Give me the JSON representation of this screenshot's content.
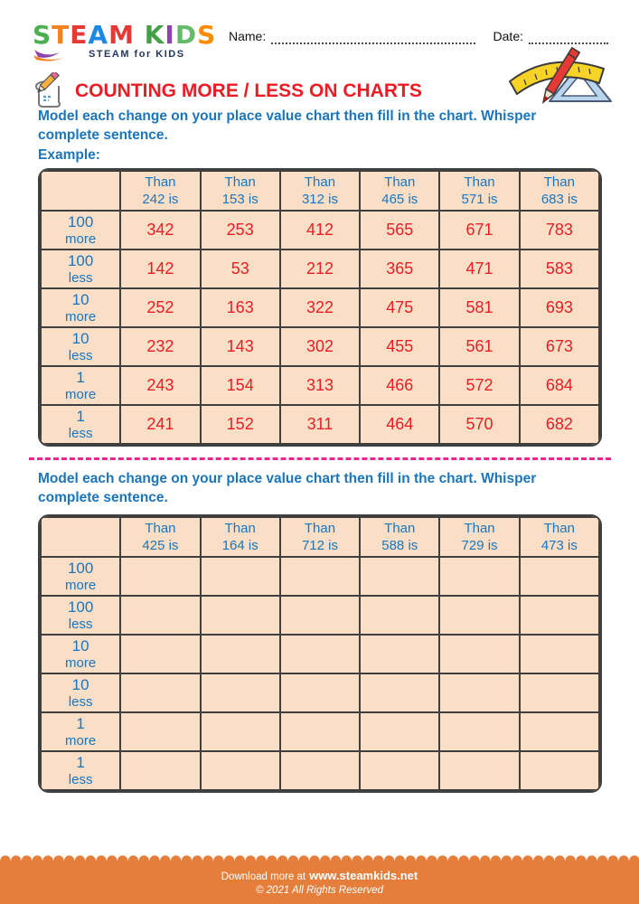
{
  "header": {
    "logo": {
      "letters": [
        {
          "ch": "S",
          "color": "#4caf50"
        },
        {
          "ch": "T",
          "color": "#f58220"
        },
        {
          "ch": "E",
          "color": "#e53935"
        },
        {
          "ch": "A",
          "color": "#1e88e5"
        },
        {
          "ch": "M",
          "color": "#e53935"
        },
        {
          "ch": " ",
          "color": "#000000"
        },
        {
          "ch": "K",
          "color": "#43a047"
        },
        {
          "ch": "I",
          "color": "#8e44ad"
        },
        {
          "ch": "D",
          "color": "#66bb6a"
        },
        {
          "ch": "S",
          "color": "#fb8c00"
        }
      ],
      "tagline": "STEAM for KIDS"
    },
    "name_label": "Name:",
    "date_label": "Date:"
  },
  "title": "COUNTING MORE / LESS ON CHARTS",
  "sections": [
    {
      "instruction": "Model each change on your place value chart then fill in the chart. Whisper complete sentence.",
      "example_label": "Example:",
      "table": {
        "col_headers": [
          [
            "Than",
            "242 is"
          ],
          [
            "Than",
            "153 is"
          ],
          [
            "Than",
            "312 is"
          ],
          [
            "Than",
            "465 is"
          ],
          [
            "Than",
            "571 is"
          ],
          [
            "Than",
            "683 is"
          ]
        ],
        "row_labels": [
          [
            "100",
            "more"
          ],
          [
            "100",
            "less"
          ],
          [
            "10",
            "more"
          ],
          [
            "10",
            "less"
          ],
          [
            "1",
            "more"
          ],
          [
            "1",
            "less"
          ]
        ],
        "rows": [
          [
            "342",
            "253",
            "412",
            "565",
            "671",
            "783"
          ],
          [
            "142",
            "53",
            "212",
            "365",
            "471",
            "583"
          ],
          [
            "252",
            "163",
            "322",
            "475",
            "581",
            "693"
          ],
          [
            "232",
            "143",
            "302",
            "455",
            "561",
            "673"
          ],
          [
            "243",
            "154",
            "313",
            "466",
            "572",
            "684"
          ],
          [
            "241",
            "152",
            "311",
            "464",
            "570",
            "682"
          ]
        ]
      }
    },
    {
      "instruction": "Model each change on your place value chart then fill in the chart. Whisper complete sentence.",
      "example_label": "",
      "table": {
        "col_headers": [
          [
            "Than",
            "425 is"
          ],
          [
            "Than",
            "164 is"
          ],
          [
            "Than",
            "712 is"
          ],
          [
            "Than",
            "588 is"
          ],
          [
            "Than",
            "729 is"
          ],
          [
            "Than",
            "473 is"
          ]
        ],
        "row_labels": [
          [
            "100",
            "more"
          ],
          [
            "100",
            "less"
          ],
          [
            "10",
            "more"
          ],
          [
            "10",
            "less"
          ],
          [
            "1",
            "more"
          ],
          [
            "1",
            "less"
          ]
        ],
        "rows": [
          [
            "",
            "",
            "",
            "",
            "",
            ""
          ],
          [
            "",
            "",
            "",
            "",
            "",
            ""
          ],
          [
            "",
            "",
            "",
            "",
            "",
            ""
          ],
          [
            "",
            "",
            "",
            "",
            "",
            ""
          ],
          [
            "",
            "",
            "",
            "",
            "",
            ""
          ],
          [
            "",
            "",
            "",
            "",
            "",
            ""
          ]
        ]
      }
    }
  ],
  "footer": {
    "download_prefix": "Download more at",
    "site_url": "www.steamkids.net",
    "copyright": "© 2021 All Rights Reserved"
  },
  "colors": {
    "accent_blue": "#1b75bc",
    "accent_red": "#ec1c24",
    "table_bg": "#fbdec6",
    "table_border": "#3f3f3f",
    "divider_pink": "#ec268f",
    "footer_orange": "#e67e3b",
    "logo_navy": "#24375b"
  }
}
